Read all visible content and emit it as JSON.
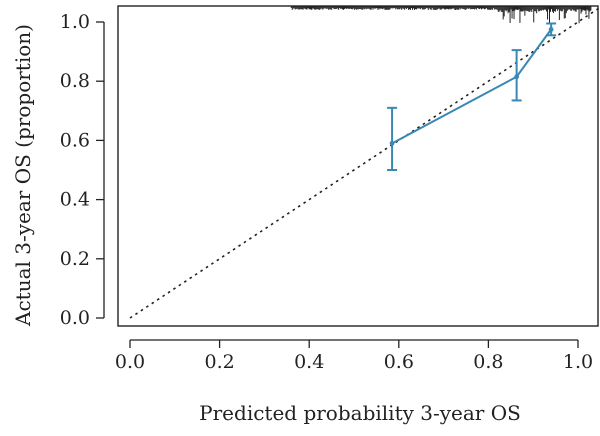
{
  "chart_data": {
    "type": "line",
    "title": "",
    "xlabel": "Predicted probability 3-year OS",
    "ylabel": "Actual 3-year OS (proportion)",
    "xlim": [
      0,
      1.05
    ],
    "ylim": [
      0,
      1.04
    ],
    "xticks": [
      0.0,
      0.2,
      0.4,
      0.6,
      0.8,
      1.0
    ],
    "xtick_labels": [
      "0.0",
      "0.2",
      "0.4",
      "0.6",
      "0.8",
      "1.0"
    ],
    "yticks": [
      0.0,
      0.2,
      0.4,
      0.6,
      0.8,
      1.0
    ],
    "ytick_labels": [
      "0.0",
      "0.2",
      "0.4",
      "0.6",
      "0.8",
      "1.0"
    ],
    "grid": false,
    "reference_line": {
      "from": [
        0,
        0
      ],
      "to": [
        1.05,
        1.05
      ],
      "style": "dotted",
      "color": "#222222"
    },
    "series": [
      {
        "color": "#3a87b4",
        "x": [
          0.585,
          0.863,
          0.94
        ],
        "y": [
          0.59,
          0.815,
          0.975
        ],
        "y_lower": [
          0.5,
          0.735,
          0.955
        ],
        "y_upper": [
          0.71,
          0.905,
          0.995
        ]
      }
    ],
    "rug": {
      "position": "top",
      "color": "#222222",
      "x_range": [
        0.36,
        1.03
      ],
      "dense_from": 0.82
    }
  }
}
